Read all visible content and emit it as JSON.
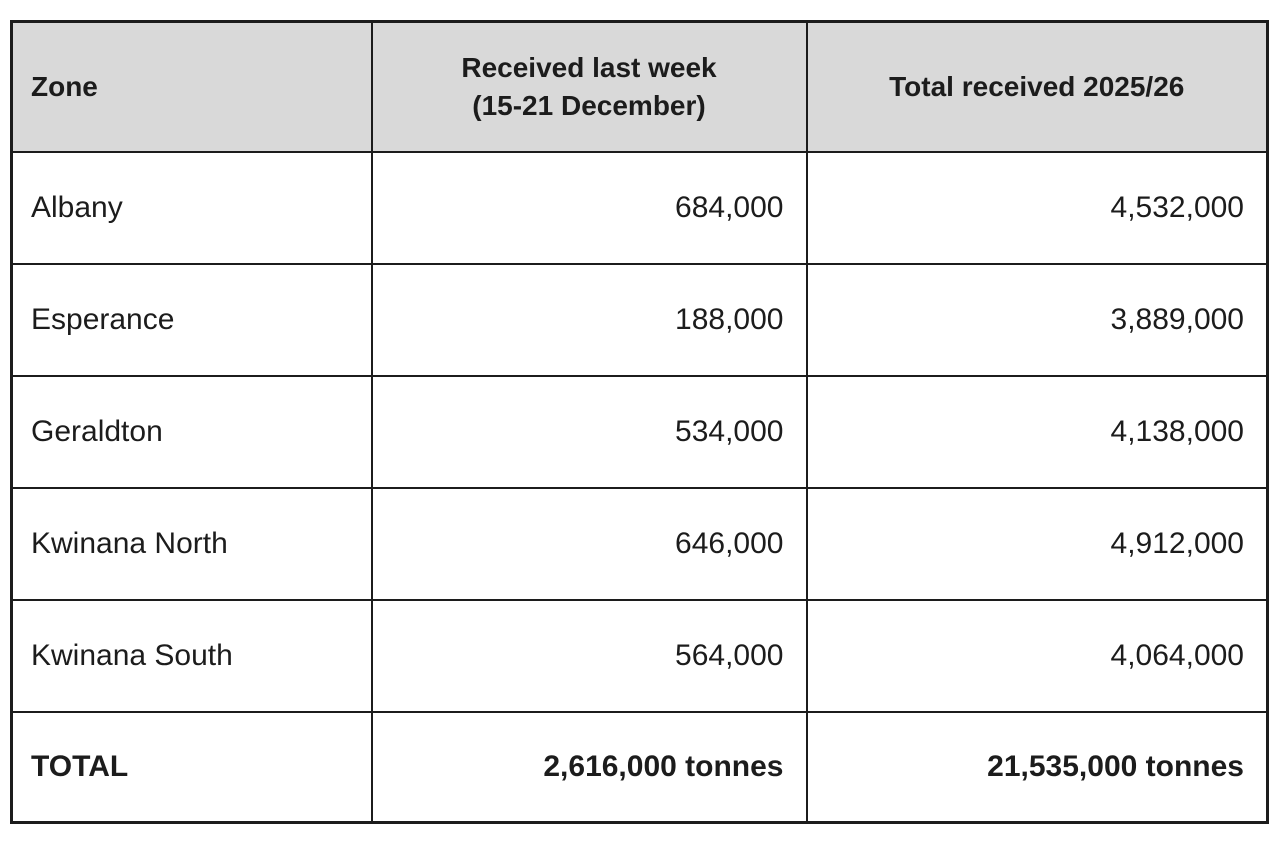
{
  "table": {
    "header": {
      "zone": "Zone",
      "week": "Received last week\n(15-21 December)",
      "total": "Total received 2025/26"
    },
    "rows": [
      {
        "zone": "Albany",
        "week": "684,000",
        "total": "4,532,000"
      },
      {
        "zone": "Esperance",
        "week": "188,000",
        "total": "3,889,000"
      },
      {
        "zone": "Geraldton",
        "week": "534,000",
        "total": "4,138,000"
      },
      {
        "zone": "Kwinana North",
        "week": "646,000",
        "total": "4,912,000"
      },
      {
        "zone": "Kwinana South",
        "week": "564,000",
        "total": "4,064,000"
      }
    ],
    "total": {
      "label": "TOTAL",
      "week": "2,616,000 tonnes",
      "total": "21,535,000 tonnes"
    }
  },
  "colors": {
    "header_bg": "#d9d9d9",
    "border": "#1c1c1c",
    "text": "#1c1c1c"
  },
  "chart_data": {
    "type": "table",
    "columns": [
      "Zone",
      "Received last week (15-21 December)",
      "Total received 2025/26"
    ],
    "rows": [
      [
        "Albany",
        684000,
        4532000
      ],
      [
        "Esperance",
        188000,
        3889000
      ],
      [
        "Geraldton",
        534000,
        4138000
      ],
      [
        "Kwinana North",
        646000,
        4912000
      ],
      [
        "Kwinana South",
        564000,
        4064000
      ],
      [
        "TOTAL",
        "2,616,000 tonnes",
        "21,535,000 tonnes"
      ]
    ],
    "units": "tonnes",
    "notes": "Grain receivals by zone; last column borders rendered black, header row shaded light gray"
  }
}
